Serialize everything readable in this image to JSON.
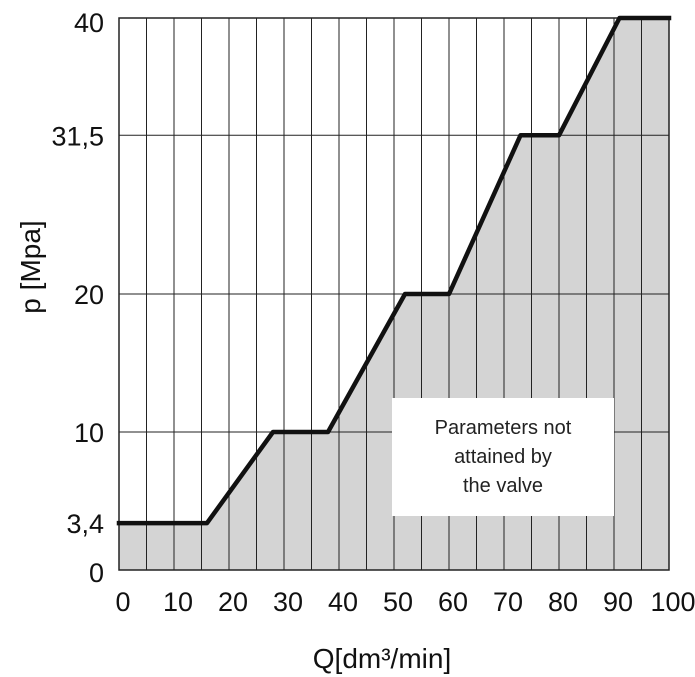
{
  "chart_data": {
    "type": "area",
    "xlabel": "Q[dm³/min]",
    "ylabel": "p [Mpa]",
    "xlim": [
      0,
      100
    ],
    "ylim": [
      0,
      40
    ],
    "x_ticks": [
      0,
      10,
      20,
      30,
      40,
      50,
      60,
      70,
      80,
      90,
      100
    ],
    "x_tick_labels": [
      "0",
      "10",
      "20",
      "30",
      "40",
      "50",
      "60",
      "70",
      "80",
      "90",
      "100"
    ],
    "y_ticks": [
      0,
      3.4,
      10,
      20,
      31.5,
      40
    ],
    "y_tick_labels": [
      "0",
      "3,4",
      "10",
      "20",
      "31,5",
      "40"
    ],
    "x_gridlines": [
      5,
      10,
      15,
      20,
      25,
      30,
      35,
      40,
      45,
      50,
      55,
      60,
      65,
      70,
      75,
      80,
      85,
      90,
      95
    ],
    "y_gridlines": [
      10,
      20,
      31.5
    ],
    "grid": true,
    "series": [
      {
        "x": [
          0,
          16,
          28,
          38,
          52,
          60,
          73,
          80,
          91,
          100
        ],
        "y": [
          3.4,
          3.4,
          10,
          10,
          20,
          20,
          31.5,
          31.5,
          40,
          40
        ]
      }
    ],
    "annotation": {
      "lines": [
        "Parameters not",
        "attained by",
        "the valve"
      ]
    },
    "colors": {
      "fill": "#d4d4d4",
      "line": "#111111",
      "grid": "#222222",
      "note_background": "#ffffff"
    }
  }
}
